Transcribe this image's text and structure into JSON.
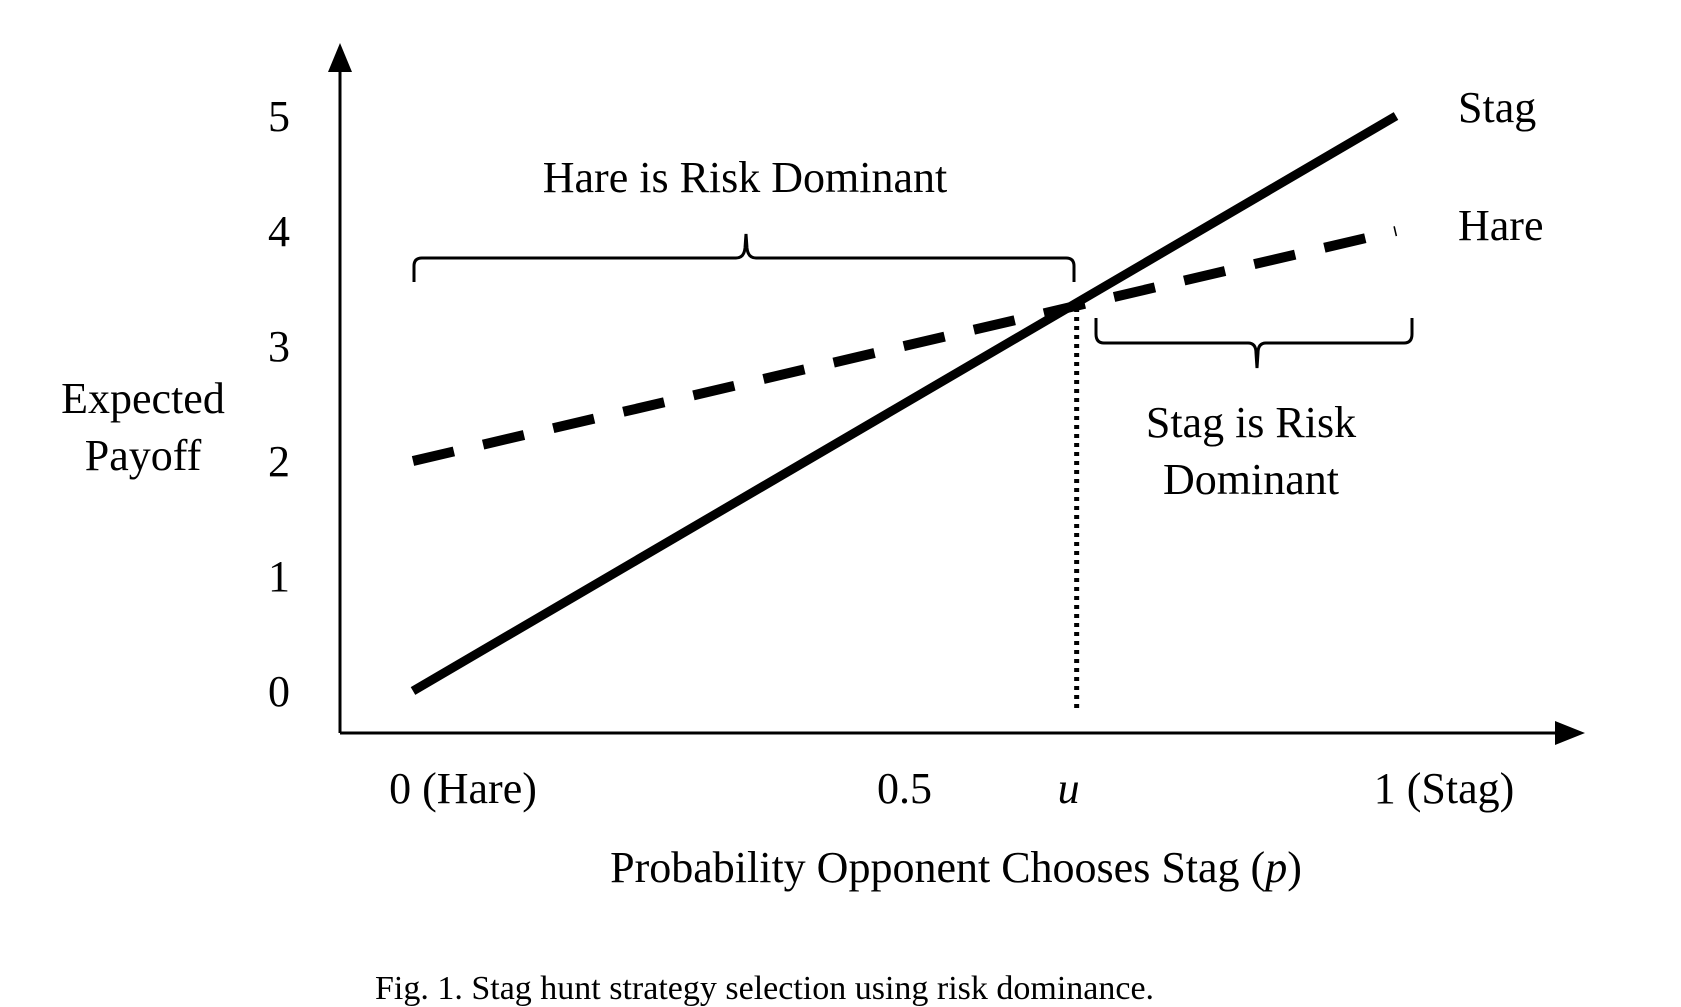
{
  "chart_data": {
    "type": "line",
    "xlabel": "Probability Opponent Chooses Stag (",
    "xlabel_var": "p",
    "xlabel_close": ")",
    "ylabel_lines": [
      "Expected",
      "Payoff"
    ],
    "xlim": [
      0,
      1
    ],
    "ylim": [
      0,
      5
    ],
    "x_ticks": [
      {
        "value": 0,
        "label": "0 (Hare)",
        "italic": false
      },
      {
        "value": 0.5,
        "label": "0.5",
        "italic": false
      },
      {
        "value": 0.667,
        "label": "u",
        "italic": true
      },
      {
        "value": 1,
        "label": "1 (Stag)",
        "italic": false
      }
    ],
    "y_ticks": [
      {
        "value": 0,
        "label": "0"
      },
      {
        "value": 1,
        "label": "1"
      },
      {
        "value": 2,
        "label": "2"
      },
      {
        "value": 3,
        "label": "3"
      },
      {
        "value": 4,
        "label": "4"
      },
      {
        "value": 5,
        "label": "5"
      }
    ],
    "series": [
      {
        "name": "Stag",
        "style": "solid",
        "x": [
          0,
          1
        ],
        "y": [
          0,
          5
        ]
      },
      {
        "name": "Hare",
        "style": "dashed",
        "x": [
          0,
          1
        ],
        "y": [
          2,
          4
        ]
      }
    ],
    "intersection": {
      "x": 0.667,
      "y": 3.33,
      "style": "dotted"
    },
    "annotations": {
      "left_region": "Hare is Risk Dominant",
      "right_region_lines": [
        "Stag is Risk",
        "Dominant"
      ]
    },
    "grid": false,
    "legend": "inline-right"
  },
  "caption": "Fig. 1. Stag hunt strategy selection using risk dominance."
}
